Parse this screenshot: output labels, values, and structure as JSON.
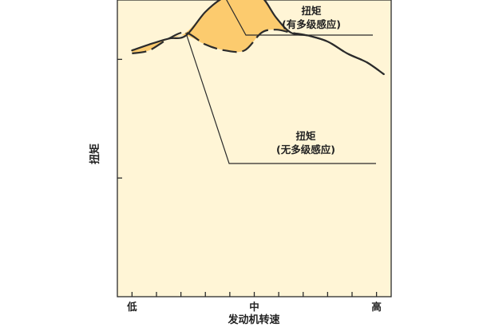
{
  "chart_data": {
    "type": "line",
    "xlabel": "发动机转速",
    "ylabel": "扭矩",
    "x_ticks": [
      {
        "value": 0,
        "label": "低"
      },
      {
        "value": 1,
        "label": ""
      },
      {
        "value": 2,
        "label": ""
      },
      {
        "value": 3,
        "label": ""
      },
      {
        "value": 4,
        "label": ""
      },
      {
        "value": 5,
        "label": "中"
      },
      {
        "value": 6,
        "label": ""
      },
      {
        "value": 7,
        "label": ""
      },
      {
        "value": 8,
        "label": ""
      },
      {
        "value": 9,
        "label": ""
      },
      {
        "value": 10,
        "label": "高"
      }
    ],
    "xlim": [
      -0.6,
      10.6
    ],
    "ylim": [
      0,
      10
    ],
    "y_ticks": [
      4,
      8
    ],
    "grid": false,
    "series": [
      {
        "name": "扭矩（有多级感应）",
        "style": "solid",
        "x": [
          0.0,
          0.7,
          1.5,
          2.2,
          3.0,
          3.8,
          4.6,
          5.3,
          5.9,
          6.5,
          7.2,
          8.0,
          8.8,
          9.6,
          10.3
        ],
        "y": [
          8.3,
          8.5,
          8.7,
          8.8,
          9.6,
          10.1,
          10.2,
          10.1,
          9.4,
          8.9,
          8.8,
          8.6,
          8.2,
          7.9,
          7.5
        ]
      },
      {
        "name": "扭矩（无多级感应）",
        "style": "dashed",
        "x": [
          0.0,
          0.7,
          1.5,
          2.2,
          3.0,
          3.8,
          4.6,
          5.3,
          5.9,
          6.5,
          7.2,
          8.0,
          8.8,
          9.6,
          10.3
        ],
        "y": [
          8.2,
          8.3,
          8.7,
          8.9,
          8.5,
          8.3,
          8.3,
          8.9,
          9.0,
          8.9,
          8.8,
          8.6,
          8.2,
          7.9,
          7.5
        ]
      }
    ],
    "annotations": [
      {
        "series": 0,
        "line1": "扭矩",
        "line2": "(有多级感应)"
      },
      {
        "series": 1,
        "line1": "扭矩",
        "line2": "(无多级感应)"
      }
    ],
    "colors": {
      "background": "#FFF5D6",
      "fill": "#FCCB6E",
      "line": "#2B2B2B",
      "axis": "#2B2B2B"
    }
  }
}
